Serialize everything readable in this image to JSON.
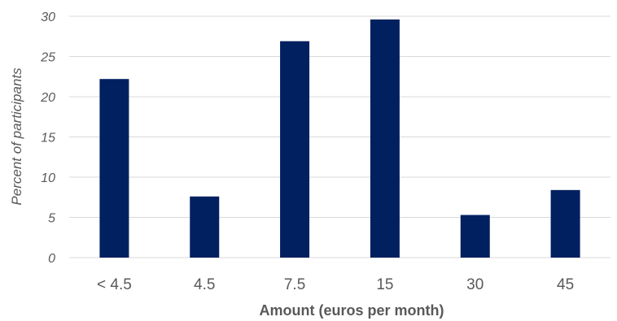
{
  "chart_data": {
    "type": "bar",
    "categories": [
      "< 4.5",
      "4.5",
      "7.5",
      "15",
      "30",
      "45"
    ],
    "values": [
      22.2,
      7.6,
      26.9,
      29.6,
      5.3,
      8.4
    ],
    "title": "",
    "xlabel": "Amount (euros per month)",
    "ylabel": "Percent of participants",
    "ylim": [
      0,
      30
    ],
    "yticks": [
      0,
      5,
      10,
      15,
      20,
      25,
      30
    ],
    "grid": true,
    "legend": "none",
    "bar_color": "#002060"
  }
}
